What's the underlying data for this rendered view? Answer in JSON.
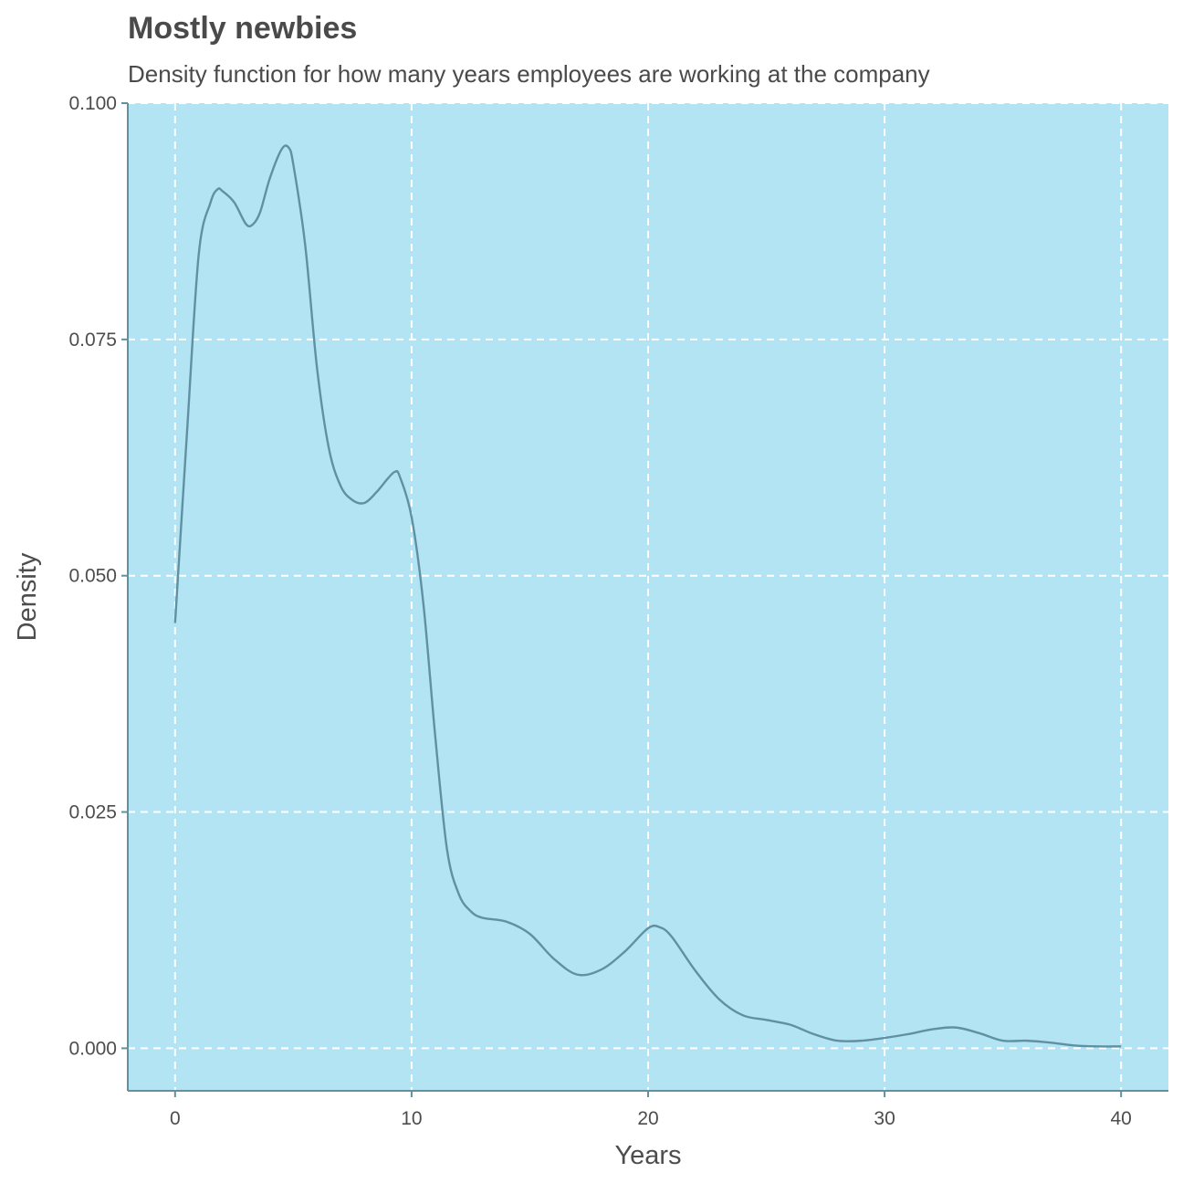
{
  "chart_data": {
    "type": "area",
    "title": "Mostly newbies",
    "subtitle": "Density function for how many years employees are working at the company",
    "xlabel": "Years",
    "ylabel": "Density",
    "xlim": [
      -2,
      42
    ],
    "ylim": [
      -0.0045,
      0.1
    ],
    "x_ticks": [
      0,
      10,
      20,
      30,
      40
    ],
    "x_tick_labels": [
      "0",
      "10",
      "20",
      "30",
      "40"
    ],
    "y_ticks": [
      0,
      0.025,
      0.05,
      0.075,
      0.1
    ],
    "y_tick_labels": [
      "0.000",
      "0.025",
      "0.050",
      "0.075",
      "0.100"
    ],
    "grid": true,
    "grid_style": "dashed",
    "colors": {
      "panel_background": "#b3e4f4",
      "line": "#5f91a3",
      "grid": "#ffffff",
      "axis": "#5f91a3",
      "text": "#4d4d4d"
    },
    "series": [
      {
        "x": [
          0,
          0.5,
          1,
          1.5,
          1.8,
          2,
          2.5,
          3,
          3.3,
          3.6,
          4,
          4.5,
          4.8,
          5,
          5.5,
          6,
          6.5,
          7,
          7.5,
          8,
          8.5,
          9,
          9.3,
          9.5,
          10,
          10.5,
          11,
          11.5,
          12,
          12.5,
          13,
          14,
          15,
          16,
          17,
          18,
          19,
          20,
          20.5,
          21,
          22,
          23,
          24,
          25,
          26,
          27,
          28,
          29,
          30,
          31,
          32,
          33,
          34,
          35,
          36,
          37,
          38,
          39,
          40
        ],
        "values": [
          0.045,
          0.065,
          0.084,
          0.0895,
          0.0909,
          0.0907,
          0.0895,
          0.0872,
          0.0872,
          0.0885,
          0.092,
          0.0951,
          0.0953,
          0.0935,
          0.085,
          0.072,
          0.0635,
          0.0595,
          0.058,
          0.0577,
          0.0588,
          0.0603,
          0.061,
          0.0605,
          0.0562,
          0.047,
          0.033,
          0.021,
          0.0163,
          0.0145,
          0.0138,
          0.0134,
          0.0121,
          0.0095,
          0.0078,
          0.0083,
          0.0102,
          0.0127,
          0.0128,
          0.0118,
          0.0082,
          0.0052,
          0.0035,
          0.003,
          0.0025,
          0.0015,
          0.0008,
          0.0008,
          0.0011,
          0.0015,
          0.002,
          0.0022,
          0.0016,
          0.0008,
          0.0008,
          0.0006,
          0.0003,
          0.0002,
          0.0002
        ]
      }
    ]
  }
}
